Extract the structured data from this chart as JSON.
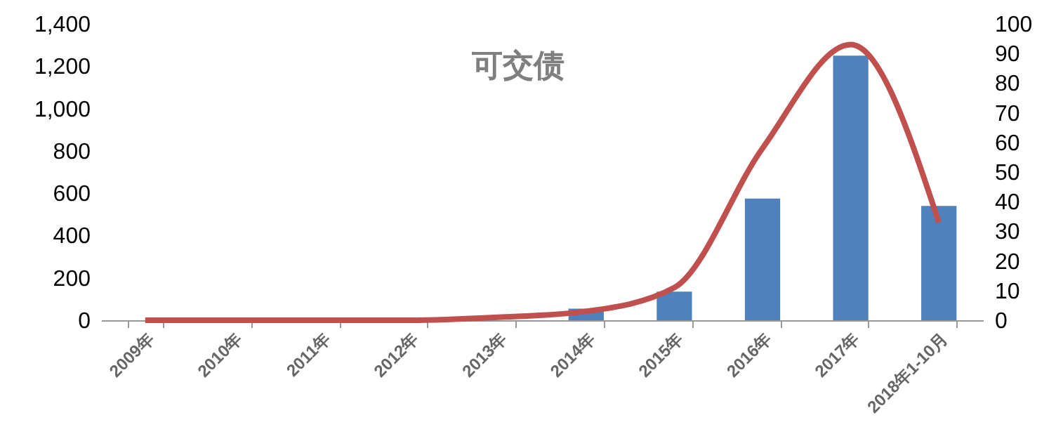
{
  "chart_data": {
    "type": "bar",
    "title": "可交债",
    "categories": [
      "2009年",
      "2010年",
      "2011年",
      "2012年",
      "2013年",
      "2014年",
      "2015年",
      "2016年",
      "2017年",
      "2018年1-10月"
    ],
    "series": [
      {
        "color": "#4f81bd",
        "values": [
          0,
          0,
          0,
          0,
          0,
          55,
          135,
          575,
          1250,
          540
        ]
      },
      {
        "type": "line",
        "axis": "y2",
        "color": "#c0504d",
        "values": [
          0,
          0,
          0,
          0,
          1,
          3,
          11,
          58,
          93,
          33
        ]
      }
    ],
    "ylim": [
      0,
      1400
    ],
    "yticks": [
      0,
      {
        "value": 200,
        "label": "200"
      },
      {
        "value": 400,
        "label": "400"
      },
      {
        "value": 600,
        "label": "600"
      },
      {
        "value": 800,
        "label": "800"
      },
      {
        "value": 1000,
        "label": "1,000"
      },
      {
        "value": 1200,
        "label": "1,200"
      },
      {
        "value": 1400,
        "label": "1,400"
      }
    ],
    "y2lim": [
      0,
      100
    ],
    "y2ticks": [
      0,
      10,
      20,
      30,
      40,
      50,
      60,
      70,
      80,
      90,
      100
    ],
    "grid": false,
    "marker": "none"
  }
}
